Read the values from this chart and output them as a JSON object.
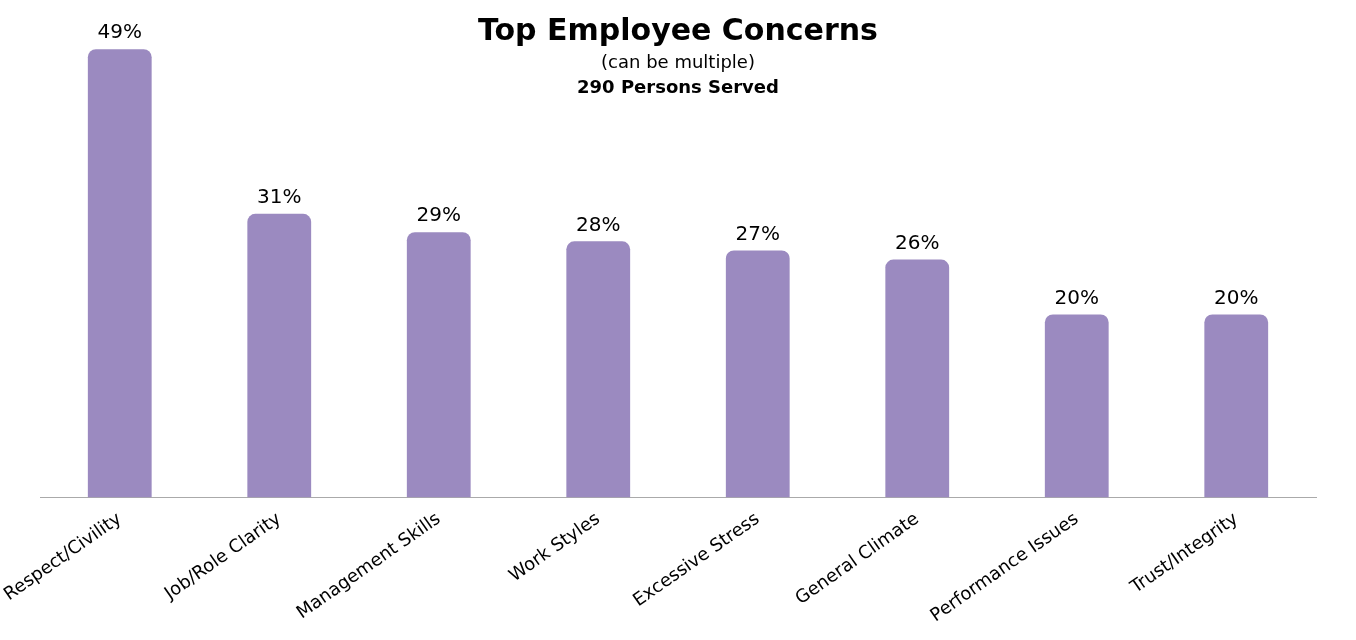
{
  "chart_data": {
    "type": "bar",
    "title": "Top Employee Concerns",
    "subtitle": "(can be multiple)",
    "annotations": [
      "290 Persons Served"
    ],
    "categories": [
      "Respect/Civility",
      "Job/Role Clarity",
      "Management Skills",
      "Work Styles",
      "Excessive Stress",
      "General Climate",
      "Performance Issues",
      "Trust/Integrity"
    ],
    "values": [
      49,
      31,
      29,
      28,
      27,
      26,
      20,
      20
    ],
    "value_labels": [
      "49%",
      "31%",
      "29%",
      "28%",
      "27%",
      "26%",
      "20%",
      "20%"
    ],
    "color": "#9b8ac0",
    "grid": false,
    "legend": false
  }
}
